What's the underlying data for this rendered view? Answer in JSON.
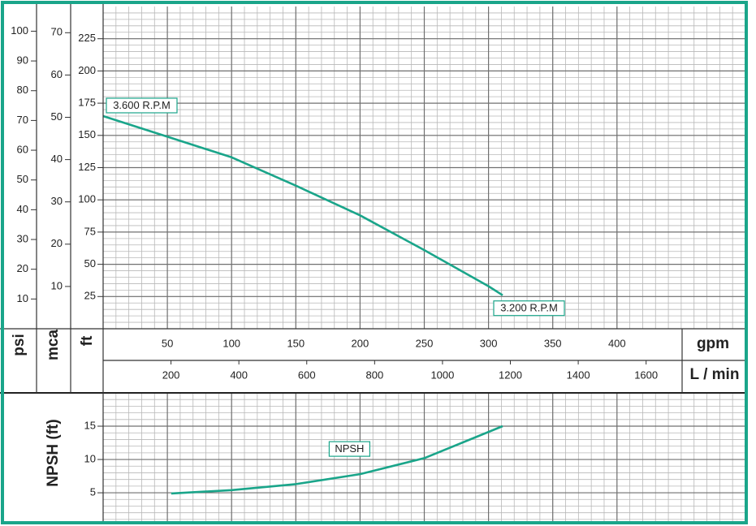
{
  "chart_data": [
    {
      "type": "line",
      "x_label": "gpm",
      "xlim": [
        0,
        500
      ],
      "xticks": [
        50,
        100,
        150,
        200,
        250,
        300,
        350,
        400
      ],
      "x_minor_step": 10,
      "x2_label": "L / min",
      "x2lim": [
        0,
        1892.7
      ],
      "x2ticks": [
        200,
        400,
        600,
        800,
        1000,
        1200,
        1400,
        1600
      ],
      "y_label": "ft",
      "ylim": [
        0,
        250
      ],
      "yticks": [
        25,
        50,
        75,
        100,
        125,
        150,
        175,
        200,
        225
      ],
      "y_minor_step": 5,
      "y2_label": "mca",
      "y2lim": [
        0,
        76.2
      ],
      "y2ticks": [
        10,
        20,
        30,
        40,
        50,
        60,
        70
      ],
      "y3_label": "psi",
      "y3lim": [
        0,
        108.3
      ],
      "y3ticks": [
        10,
        20,
        30,
        40,
        50,
        60,
        70,
        80,
        90,
        100
      ],
      "grid": true,
      "series": [
        {
          "color": "#1aa58a",
          "x": [
            0,
            50,
            100,
            150,
            200,
            250,
            300,
            311
          ],
          "values": [
            165,
            149,
            133,
            111,
            88,
            61,
            33,
            26
          ]
        }
      ],
      "annotations": [
        "3.600 R.P.M",
        "3.200 R.P.M"
      ]
    },
    {
      "type": "line",
      "y_label": "NPSH (ft)",
      "xlim": [
        0,
        500
      ],
      "x_minor_step": 10,
      "xticks": [
        50,
        100,
        150,
        200,
        250,
        300,
        350,
        400
      ],
      "ylim": [
        0.5,
        20
      ],
      "yticks": [
        5,
        10,
        15
      ],
      "y_minor_step": 1,
      "grid": true,
      "series": [
        {
          "name": "NPSH",
          "color": "#1aa58a",
          "x": [
            53,
            100,
            150,
            200,
            250,
            311
          ],
          "values": [
            4.9,
            5.4,
            6.3,
            7.8,
            10.2,
            15
          ]
        }
      ]
    }
  ]
}
